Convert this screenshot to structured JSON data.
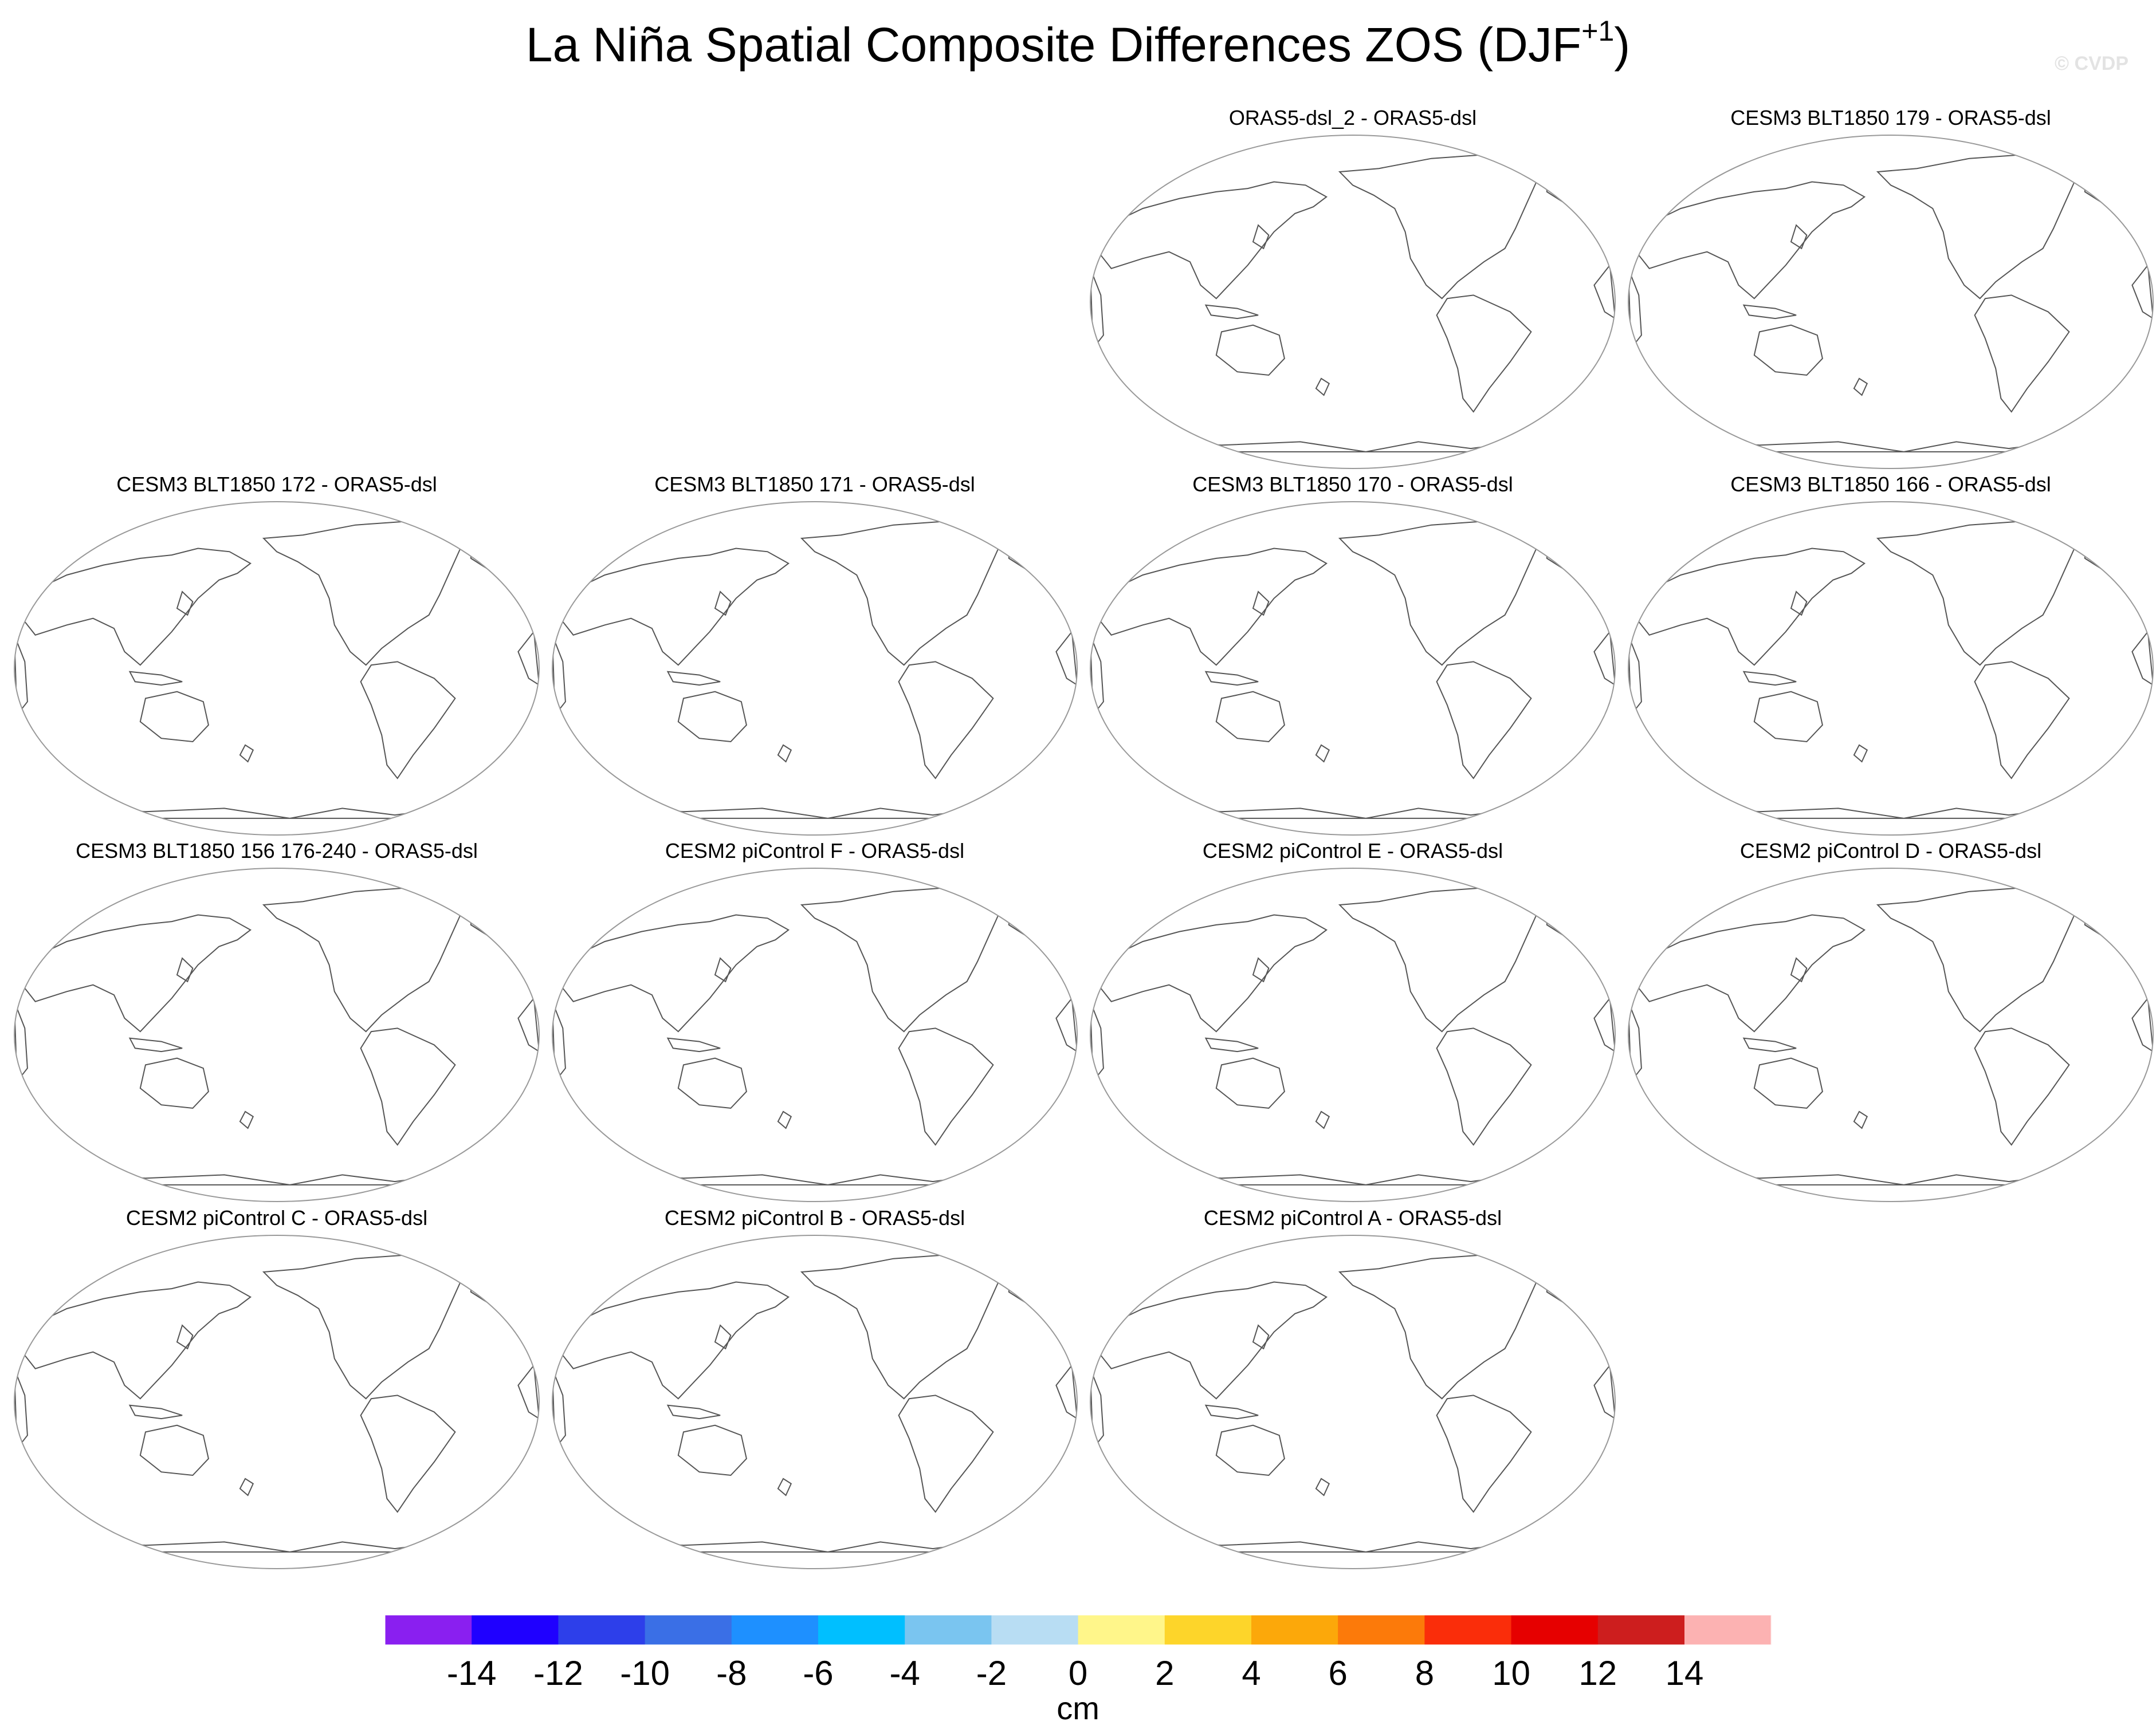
{
  "title": {
    "main": "La Niña Spatial Composite Differences ZOS (DJF",
    "superscript": "+1",
    "close": ")"
  },
  "watermark": "© CVDP",
  "panels": [
    {
      "title": "ORAS5-dsl_2 - ORAS5-dsl",
      "slot": 2
    },
    {
      "title": "CESM3 BLT1850 179 - ORAS5-dsl",
      "slot": 3
    },
    {
      "title": "CESM3 BLT1850 172 - ORAS5-dsl",
      "slot": 4
    },
    {
      "title": "CESM3 BLT1850 171 - ORAS5-dsl",
      "slot": 5
    },
    {
      "title": "CESM3 BLT1850 170 - ORAS5-dsl",
      "slot": 6
    },
    {
      "title": "CESM3 BLT1850 166 - ORAS5-dsl",
      "slot": 7
    },
    {
      "title": "CESM3 BLT1850 156 176-240 - ORAS5-dsl",
      "slot": 8
    },
    {
      "title": "CESM2 piControl F - ORAS5-dsl",
      "slot": 9
    },
    {
      "title": "CESM2 piControl E - ORAS5-dsl",
      "slot": 10
    },
    {
      "title": "CESM2 piControl D - ORAS5-dsl",
      "slot": 11
    },
    {
      "title": "CESM2 piControl C - ORAS5-dsl",
      "slot": 12
    },
    {
      "title": "CESM2 piControl B - ORAS5-dsl",
      "slot": 13
    },
    {
      "title": "CESM2 piControl A - ORAS5-dsl",
      "slot": 14
    }
  ],
  "colorbar": {
    "units": "cm",
    "labels": [
      "-14",
      "-12",
      "-10",
      "-8",
      "-6",
      "-4",
      "-2",
      "0",
      "2",
      "4",
      "6",
      "8",
      "10",
      "12",
      "14"
    ],
    "colors": [
      "#8a1ff0",
      "#1f00ff",
      "#2d3fea",
      "#3a6fe6",
      "#1e90ff",
      "#00bfff",
      "#7ac5f0",
      "#b8ddf3",
      "#fff68a",
      "#fdd52a",
      "#fca80a",
      "#fc7a0a",
      "#fa2d0a",
      "#e60000",
      "#cd1e1e",
      "#fcb2b2"
    ]
  }
}
